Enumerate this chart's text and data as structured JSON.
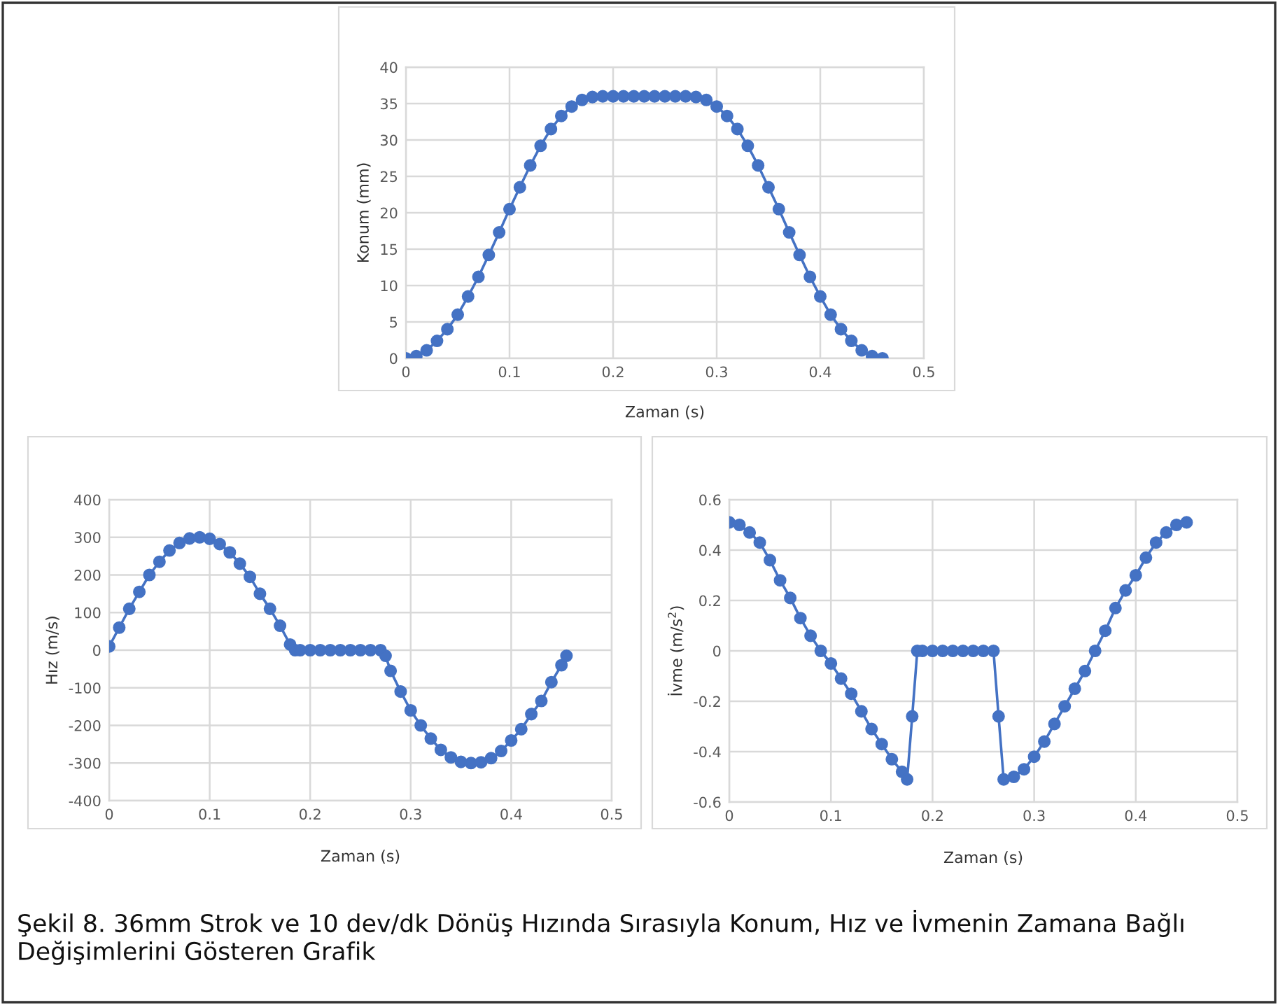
{
  "chart_data": [
    {
      "type": "line",
      "xlabel": "Zaman (s)",
      "ylabel": "Konum (mm)",
      "xlim": [
        0,
        0.5
      ],
      "xticks": [
        0,
        0.1,
        0.2,
        0.3,
        0.4,
        0.5
      ],
      "ylim": [
        0,
        40
      ],
      "yticks": [
        0,
        5,
        10,
        15,
        20,
        25,
        30,
        35,
        40
      ],
      "grid": true,
      "marker": "circle",
      "line_style": "solid",
      "series": [
        {
          "color": "#4472c4",
          "x": [
            0,
            0.01,
            0.02,
            0.03,
            0.04,
            0.05,
            0.06,
            0.07,
            0.08,
            0.09,
            0.1,
            0.11,
            0.12,
            0.13,
            0.14,
            0.15,
            0.16,
            0.17,
            0.18,
            0.19,
            0.2,
            0.21,
            0.22,
            0.23,
            0.24,
            0.25,
            0.26,
            0.27,
            0.28,
            0.29,
            0.3,
            0.31,
            0.32,
            0.33,
            0.34,
            0.35,
            0.36,
            0.37,
            0.38,
            0.39,
            0.4,
            0.41,
            0.42,
            0.43,
            0.44,
            0.45,
            0.46
          ],
          "values": [
            0,
            0.3,
            1.1,
            2.4,
            4,
            6,
            8.5,
            11.2,
            14.2,
            17.3,
            20.5,
            23.5,
            26.5,
            29.2,
            31.5,
            33.3,
            34.6,
            35.5,
            35.9,
            36,
            36,
            36,
            36,
            36,
            36,
            36,
            36,
            36,
            35.9,
            35.5,
            34.6,
            33.3,
            31.5,
            29.2,
            26.5,
            23.5,
            20.5,
            17.3,
            14.2,
            11.2,
            8.5,
            6,
            4,
            2.4,
            1.1,
            0.3,
            0
          ]
        }
      ]
    },
    {
      "type": "line",
      "xlabel": "Zaman (s)",
      "ylabel": "Hız (m/s)",
      "xlim": [
        0,
        0.5
      ],
      "xticks": [
        0,
        0.1,
        0.2,
        0.3,
        0.4,
        0.5
      ],
      "ylim": [
        -400,
        400
      ],
      "yticks": [
        -400,
        -300,
        -200,
        -100,
        0,
        100,
        200,
        300,
        400
      ],
      "grid": true,
      "marker": "circle",
      "line_style": "solid",
      "series": [
        {
          "color": "#4472c4",
          "x": [
            0,
            0.01,
            0.02,
            0.03,
            0.04,
            0.05,
            0.06,
            0.07,
            0.08,
            0.09,
            0.1,
            0.11,
            0.12,
            0.13,
            0.14,
            0.15,
            0.16,
            0.17,
            0.18,
            0.185,
            0.19,
            0.2,
            0.21,
            0.22,
            0.23,
            0.24,
            0.25,
            0.26,
            0.27,
            0.275,
            0.28,
            0.29,
            0.3,
            0.31,
            0.32,
            0.33,
            0.34,
            0.35,
            0.36,
            0.37,
            0.38,
            0.39,
            0.4,
            0.41,
            0.42,
            0.43,
            0.44,
            0.45,
            0.455
          ],
          "values": [
            10,
            60,
            110,
            155,
            200,
            235,
            265,
            285,
            297,
            300,
            296,
            282,
            260,
            230,
            195,
            150,
            110,
            65,
            15,
            0,
            0,
            0,
            0,
            0,
            0,
            0,
            0,
            0,
            0,
            -15,
            -55,
            -110,
            -160,
            -200,
            -235,
            -265,
            -285,
            -297,
            -300,
            -298,
            -287,
            -268,
            -240,
            -210,
            -170,
            -135,
            -85,
            -40,
            -15
          ]
        }
      ]
    },
    {
      "type": "line",
      "xlabel": "Zaman (s)",
      "ylabel": "İvme (m/s$^{2}$)",
      "xlim": [
        0,
        0.5
      ],
      "xticks": [
        0,
        0.1,
        0.2,
        0.3,
        0.4,
        0.5
      ],
      "ylim": [
        -0.6,
        0.6
      ],
      "yticks": [
        -0.6,
        -0.4,
        -0.2,
        0,
        0.2,
        0.4,
        0.6
      ],
      "grid": true,
      "marker": "circle",
      "line_style": "solid",
      "annotations": [
        "Şekil 8. 36mm Strok ve 10 dev/dk Dönüş Hızında Sırasıyla Konum, Hız ve İvmenin Zamana Bağlı Değişimlerini Gösteren Grafik"
      ],
      "series": [
        {
          "color": "#4472c4",
          "x": [
            0,
            0.01,
            0.02,
            0.03,
            0.04,
            0.05,
            0.06,
            0.07,
            0.08,
            0.09,
            0.1,
            0.11,
            0.12,
            0.13,
            0.14,
            0.15,
            0.16,
            0.17,
            0.175,
            0.18,
            0.185,
            0.19,
            0.2,
            0.21,
            0.22,
            0.23,
            0.24,
            0.25,
            0.26,
            0.265,
            0.27,
            0.28,
            0.29,
            0.3,
            0.31,
            0.32,
            0.33,
            0.34,
            0.35,
            0.36,
            0.37,
            0.38,
            0.39,
            0.4,
            0.41,
            0.42,
            0.43,
            0.44,
            0.45
          ],
          "values": [
            0.51,
            0.5,
            0.47,
            0.43,
            0.36,
            0.28,
            0.21,
            0.13,
            0.06,
            0,
            -0.05,
            -0.11,
            -0.17,
            -0.24,
            -0.31,
            -0.37,
            -0.43,
            -0.48,
            -0.51,
            -0.26,
            0,
            0,
            0,
            0,
            0,
            0,
            0,
            0,
            0,
            -0.26,
            -0.51,
            -0.5,
            -0.47,
            -0.42,
            -0.36,
            -0.29,
            -0.22,
            -0.15,
            -0.08,
            0,
            0.08,
            0.17,
            0.24,
            0.3,
            0.37,
            0.43,
            0.47,
            0.5,
            0.51
          ]
        }
      ]
    }
  ]
}
